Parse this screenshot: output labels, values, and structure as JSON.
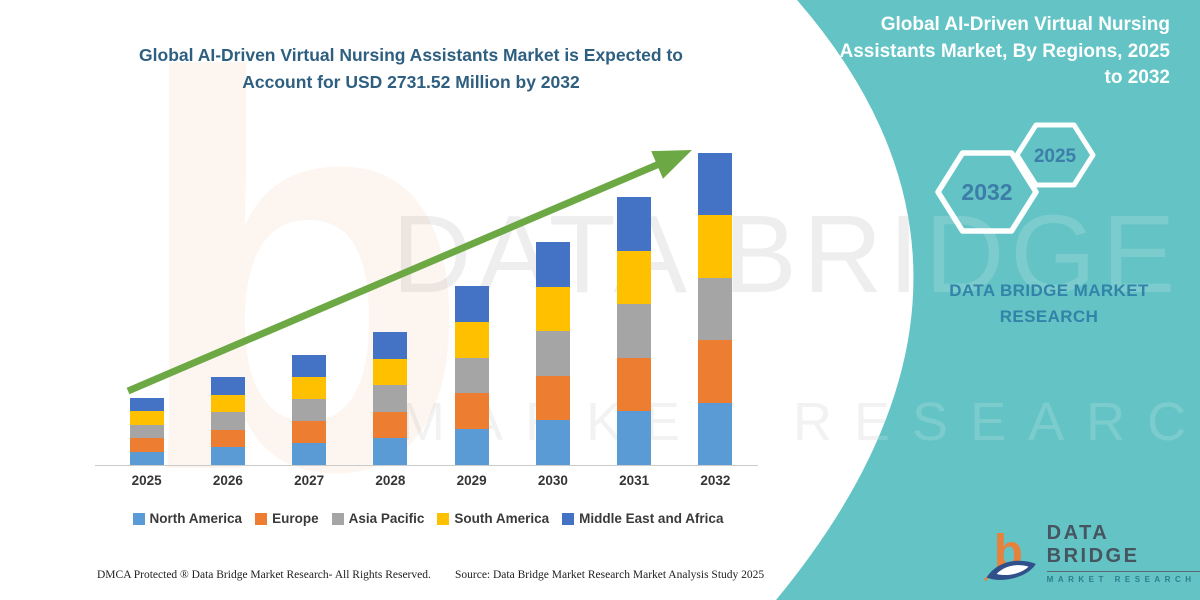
{
  "page": {
    "background": "#FFFFFF",
    "panel_color": "#63C3C5",
    "arrow_color": "#6CA945"
  },
  "left_panel": {
    "title_lines": [
      "Global AI-Driven Virtual Nursing Assistants Market is Expected to",
      "Account for USD 2731.52 Million by 2032"
    ],
    "title_color": "#2E5F80"
  },
  "chart_data": {
    "type": "bar",
    "stacked": true,
    "title": "Global AI-Driven Virtual Nursing Assistants Market is Expected to Account for USD 2731.52 Million by 2032",
    "units": "USD Million",
    "categories": [
      "2025",
      "2026",
      "2027",
      "2028",
      "2029",
      "2030",
      "2031",
      "2032"
    ],
    "series": [
      {
        "name": "North America",
        "color": "#5B9BD5",
        "values": [
          117.3,
          154.1,
          192.6,
          232.9,
          313.4,
          390.5,
          469.3,
          546.3
        ]
      },
      {
        "name": "Europe",
        "color": "#ED7D31",
        "values": [
          117.3,
          154.1,
          192.6,
          232.9,
          313.4,
          390.5,
          469.3,
          546.3
        ]
      },
      {
        "name": "Asia Pacific",
        "color": "#A5A5A5",
        "values": [
          117.3,
          154.1,
          192.6,
          232.9,
          313.4,
          390.5,
          469.3,
          546.3
        ]
      },
      {
        "name": "South America",
        "color": "#FFC000",
        "values": [
          117.3,
          154.1,
          192.6,
          232.9,
          313.4,
          390.5,
          469.3,
          546.3
        ]
      },
      {
        "name": "Middle East and Africa",
        "color": "#4472C4",
        "values": [
          117.3,
          154.1,
          192.6,
          232.9,
          313.4,
          390.5,
          469.3,
          546.3
        ]
      }
    ],
    "totals": [
      586.5,
      770.5,
      963.0,
      1164.5,
      1567.0,
      1952.5,
      2346.5,
      2731.52
    ],
    "ylim": [
      0,
      2731.52
    ],
    "grid": false,
    "legend_position": "bottom",
    "trend_arrow": "up-right",
    "note": "segment values estimated from bar heights; 2032 total labeled USD 2731.52 Million"
  },
  "right_panel": {
    "title_lines": [
      "Global AI-Driven Virtual Nursing",
      "Assistants Market, By Regions, 2025",
      "to 2032"
    ],
    "hexagon_large_year": "2032",
    "hexagon_small_year": "2025",
    "brand_lines": [
      "DATA BRIDGE MARKET",
      "RESEARCH"
    ]
  },
  "logo": {
    "name": "DATA BRIDGE",
    "tagline": "MARKET RESEARCH",
    "mark_letter": "b"
  },
  "watermark": {
    "brand": "DATA BRIDGE",
    "tagline": "MARKET RESEARCH",
    "mark_letter": "b"
  },
  "footer": {
    "dmca": "DMCA Protected ® Data Bridge Market Research-  All Rights Reserved.",
    "source": "Source: Data Bridge Market Research  Market Analysis Study 2025"
  }
}
